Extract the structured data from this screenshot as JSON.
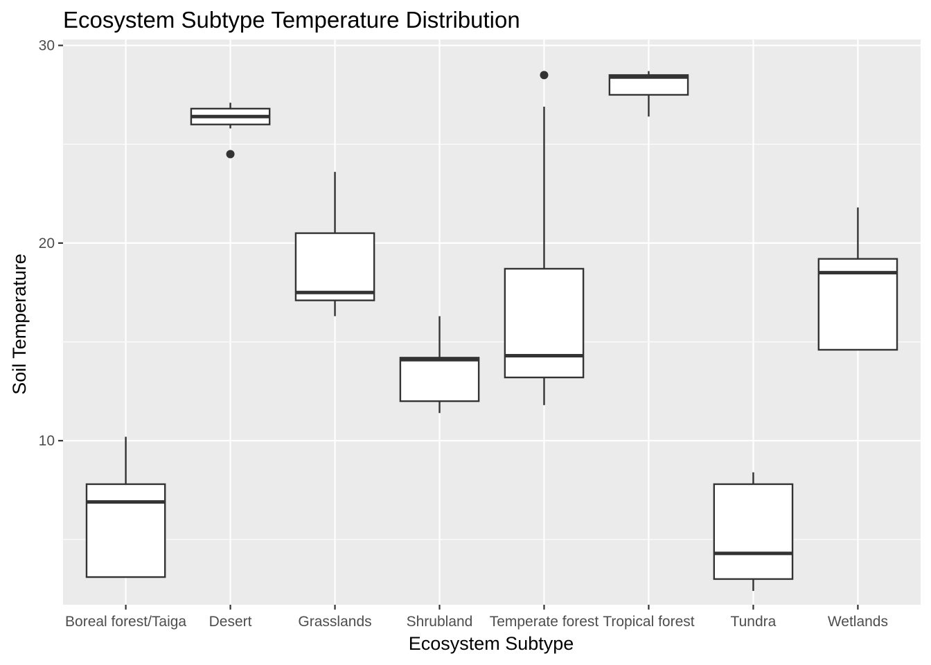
{
  "chart_data": {
    "type": "boxplot",
    "title": "Ecosystem Subtype Temperature Distribution",
    "xlabel": "Ecosystem Subtype",
    "ylabel": "Soil Temperature",
    "ylim": [
      1.7,
      30.3
    ],
    "yticks": [
      10,
      20,
      30
    ],
    "grid": true,
    "categories": [
      "Boreal forest/Taiga",
      "Desert",
      "Grasslands",
      "Shrubland",
      "Temperate forest",
      "Tropical forest",
      "Tundra",
      "Wetlands"
    ],
    "boxes": [
      {
        "category": "Boreal forest/Taiga",
        "whisker_low": 3.1,
        "q1": 3.1,
        "median": 6.9,
        "q3": 7.8,
        "whisker_high": 10.2,
        "outliers": []
      },
      {
        "category": "Desert",
        "whisker_low": 25.8,
        "q1": 26.0,
        "median": 26.4,
        "q3": 26.8,
        "whisker_high": 27.1,
        "outliers": [
          24.5
        ]
      },
      {
        "category": "Grasslands",
        "whisker_low": 16.3,
        "q1": 17.1,
        "median": 17.5,
        "q3": 20.5,
        "whisker_high": 23.6,
        "outliers": []
      },
      {
        "category": "Shrubland",
        "whisker_low": 11.4,
        "q1": 12.0,
        "median": 14.1,
        "q3": 14.2,
        "whisker_high": 16.3,
        "outliers": []
      },
      {
        "category": "Temperate forest",
        "whisker_low": 11.8,
        "q1": 13.2,
        "median": 14.3,
        "q3": 18.7,
        "whisker_high": 26.9,
        "outliers": [
          28.5
        ]
      },
      {
        "category": "Tropical forest",
        "whisker_low": 26.4,
        "q1": 27.5,
        "median": 28.4,
        "q3": 28.5,
        "whisker_high": 28.7,
        "outliers": []
      },
      {
        "category": "Tundra",
        "whisker_low": 2.4,
        "q1": 3.0,
        "median": 4.3,
        "q3": 7.8,
        "whisker_high": 8.4,
        "outliers": []
      },
      {
        "category": "Wetlands",
        "whisker_low": 14.6,
        "q1": 14.6,
        "median": 18.5,
        "q3": 19.2,
        "whisker_high": 21.8,
        "outliers": []
      }
    ],
    "colors": {
      "panel_background": "#ebebeb",
      "grid": "#ffffff",
      "box_fill": "#ffffff",
      "box_line": "#333333",
      "tick_text": "#4d4d4d"
    }
  }
}
